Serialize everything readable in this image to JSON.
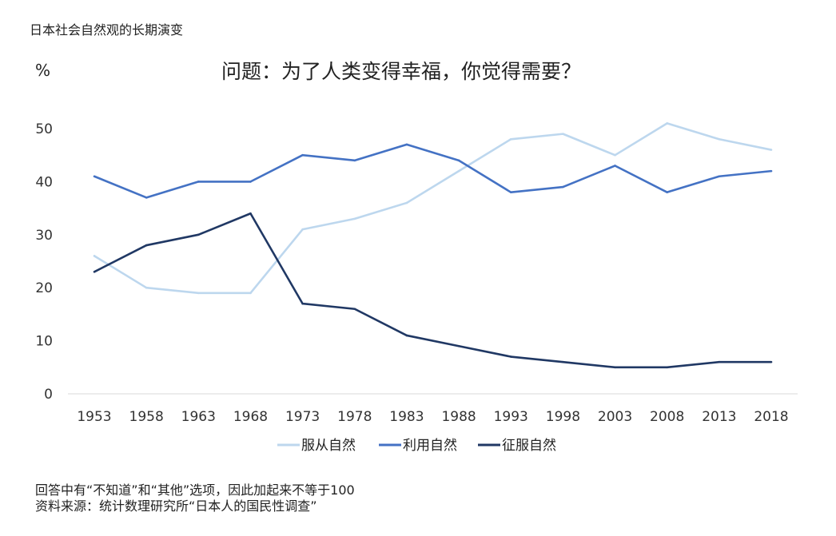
{
  "heading": "日本社会自然观的长期演变",
  "notes": [
    "回答中有“不知道”和“其他”选项，因此加起来不等于100",
    "资料来源：统计数理研究所“日本人的国民性调查”"
  ],
  "chart_data": {
    "type": "line",
    "title": "问题：为了人类变得幸福，你觉得需要？",
    "ylabel": "%",
    "xlabel": "",
    "ylim": [
      0,
      50
    ],
    "yticks": [
      0,
      10,
      20,
      30,
      40,
      50
    ],
    "grid": false,
    "legend": "bottom",
    "categories": [
      "1953",
      "1958",
      "1963",
      "1968",
      "1973",
      "1978",
      "1983",
      "1988",
      "1993",
      "1998",
      "2003",
      "2008",
      "2013",
      "2018"
    ],
    "series": [
      {
        "name": "服从自然",
        "color": "#bdd7ee",
        "values": [
          26,
          20,
          19,
          19,
          31,
          33,
          36,
          42,
          48,
          49,
          45,
          51,
          48,
          46
        ]
      },
      {
        "name": "利用自然",
        "color": "#4472c4",
        "values": [
          41,
          37,
          40,
          40,
          45,
          44,
          47,
          44,
          38,
          39,
          43,
          38,
          41,
          42
        ]
      },
      {
        "name": "征服自然",
        "color": "#203864",
        "values": [
          23,
          28,
          30,
          34,
          17,
          16,
          11,
          9,
          7,
          6,
          5,
          5,
          6,
          6
        ]
      }
    ]
  }
}
